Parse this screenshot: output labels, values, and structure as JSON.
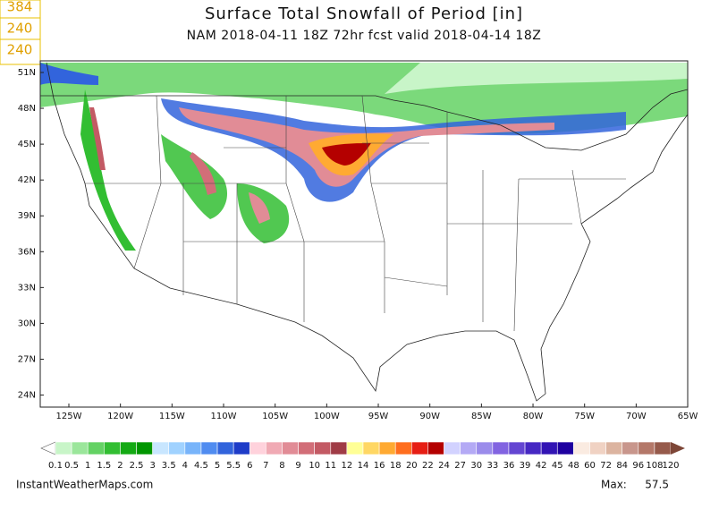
{
  "header": {
    "title": "Surface Total Snowfall of Period [in]",
    "subtitle": "NAM 2018-04-11 18Z 72hr fcst valid 2018-04-14 18Z"
  },
  "side_labels": [
    "384",
    "240",
    "240"
  ],
  "map": {
    "lat_labels": [
      "51N",
      "48N",
      "45N",
      "42N",
      "39N",
      "36N",
      "33N",
      "30N",
      "27N",
      "24N"
    ],
    "lon_labels": [
      "125W",
      "120W",
      "115W",
      "110W",
      "105W",
      "100W",
      "95W",
      "90W",
      "85W",
      "80W",
      "75W",
      "70W",
      "65W"
    ]
  },
  "colorbar": {
    "labels": [
      "0.1",
      "0.5",
      "1",
      "1.5",
      "2",
      "2.5",
      "3",
      "3.5",
      "4",
      "4.5",
      "5",
      "5.5",
      "6",
      "7",
      "8",
      "9",
      "10",
      "11",
      "12",
      "14",
      "16",
      "18",
      "20",
      "22",
      "24",
      "27",
      "30",
      "33",
      "36",
      "39",
      "42",
      "45",
      "48",
      "60",
      "72",
      "84",
      "96",
      "108",
      "120"
    ],
    "colors": [
      "#c8f5c8",
      "#9be69b",
      "#64d264",
      "#32be32",
      "#14aa14",
      "#009600",
      "#c8e6ff",
      "#a0d2ff",
      "#78b4fa",
      "#508cf0",
      "#3264dc",
      "#1e3cc8",
      "#ffd2dc",
      "#f0aab4",
      "#e18c96",
      "#d26e78",
      "#c35a64",
      "#a03c46",
      "#ffff96",
      "#ffd764",
      "#ffaa32",
      "#ff6e1e",
      "#e61e14",
      "#b40000",
      "#d2d2ff",
      "#b4aaf5",
      "#9b8ceb",
      "#8264e1",
      "#6446d2",
      "#4628c3",
      "#3214b4",
      "#1e00a0",
      "#faebe1",
      "#f0d2c3",
      "#dcb4a0",
      "#c8968c",
      "#b47869",
      "#965a4b"
    ]
  },
  "footer": {
    "source": "InstantWeatherMaps.com",
    "max_label": "Max:",
    "max_value": "57.5"
  }
}
